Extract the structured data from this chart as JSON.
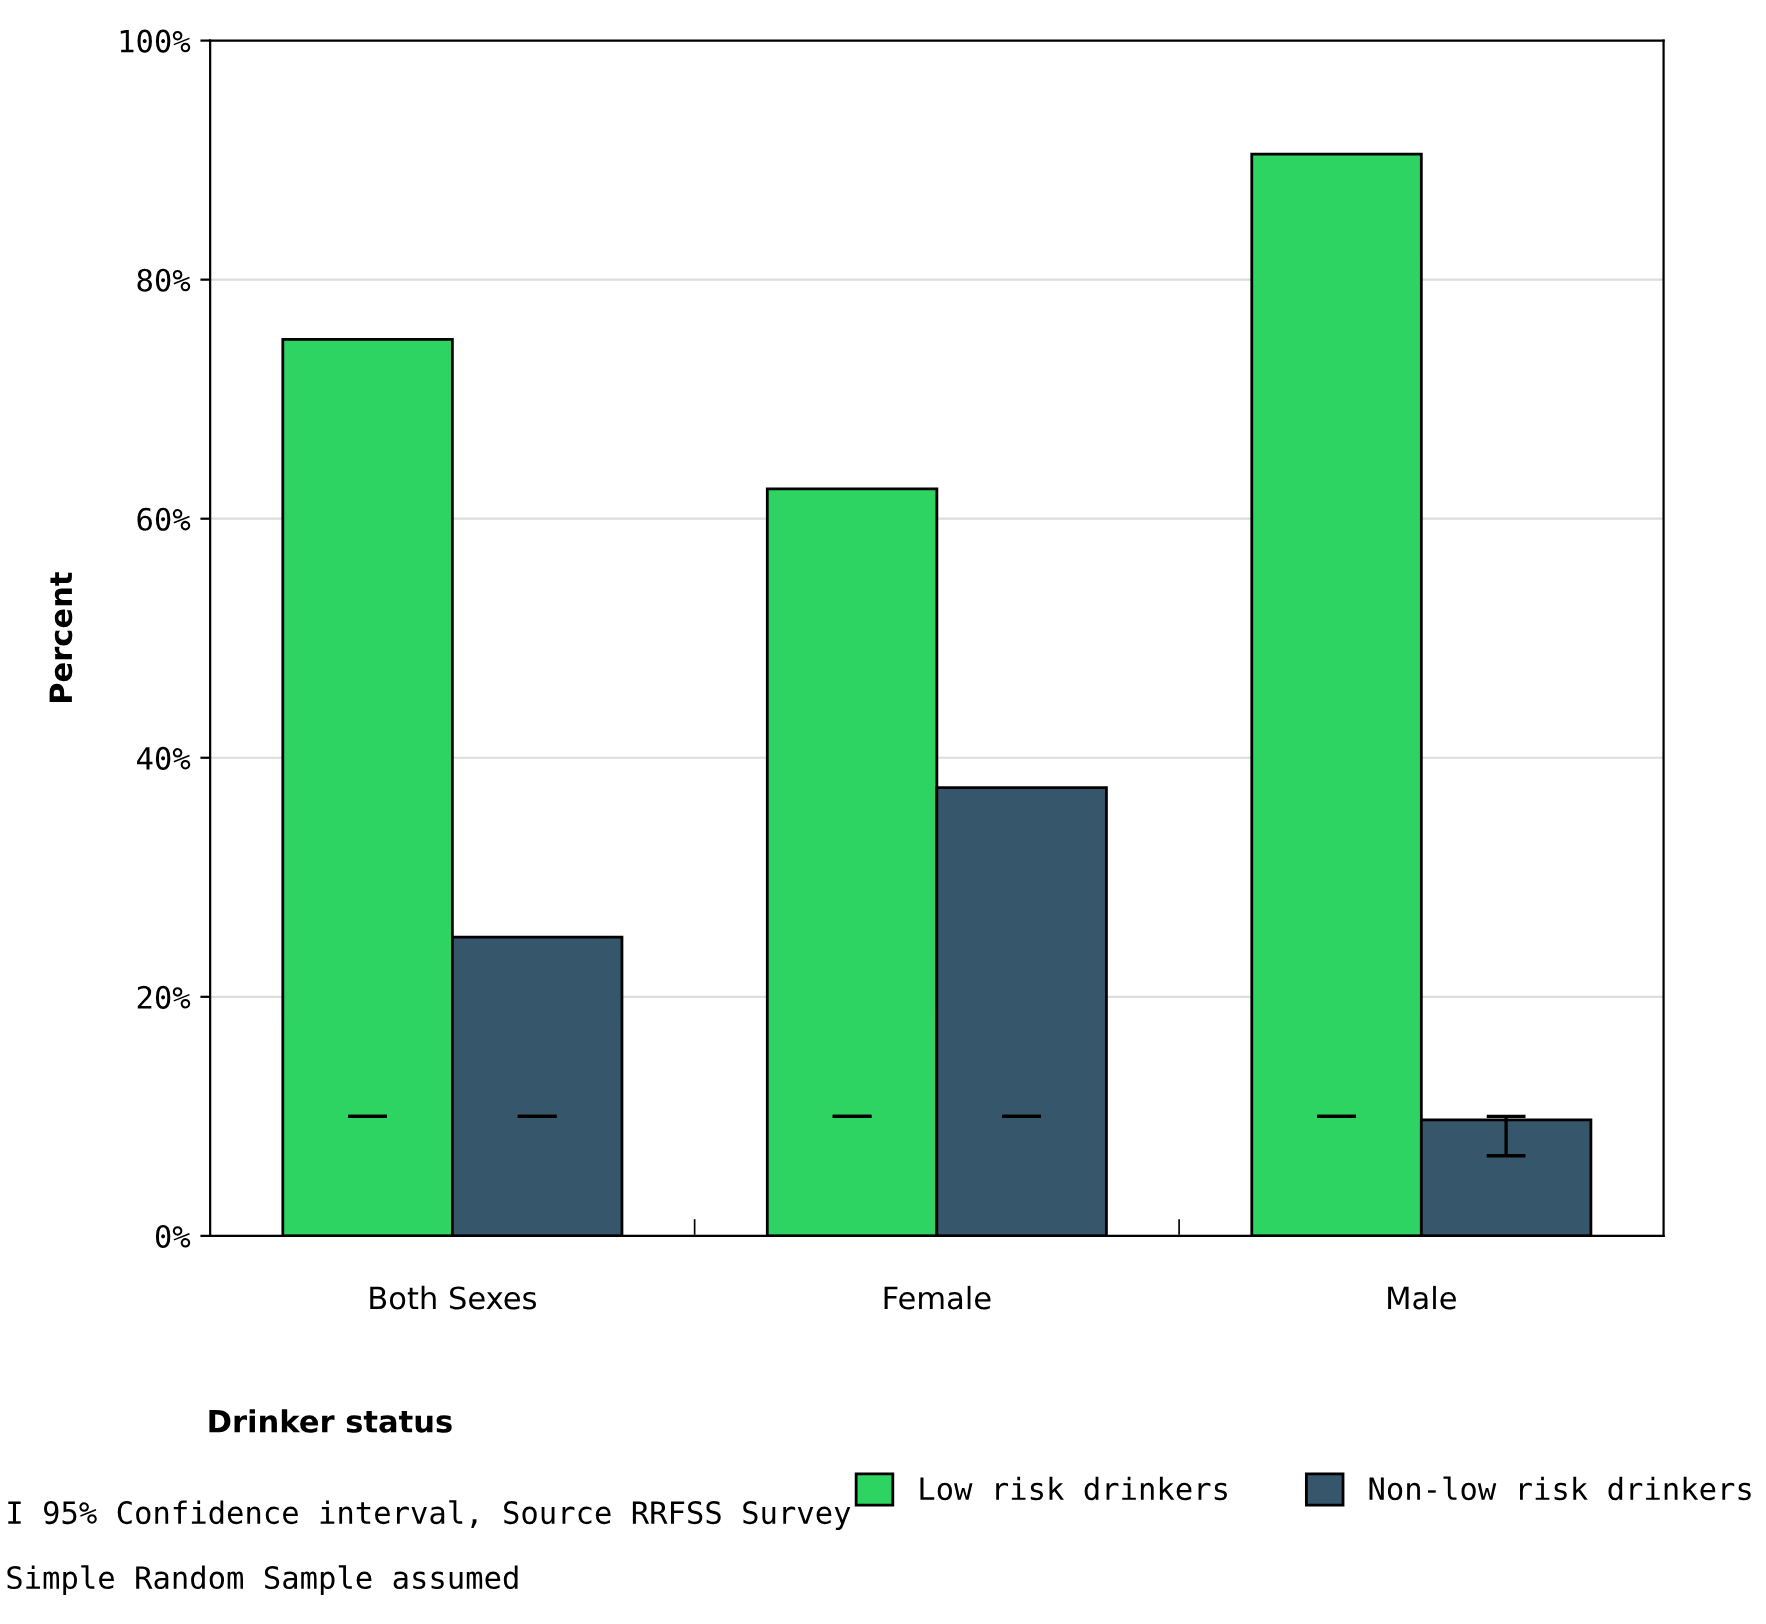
{
  "chart_data": {
    "type": "bar",
    "ylabel": "Percent",
    "xlabel": "Drinker status",
    "categories": [
      "Both Sexes",
      "Female",
      "Male"
    ],
    "series": [
      {
        "name": "Low risk drinkers",
        "color": "#2ed461",
        "values": [
          75,
          62.5,
          90.5
        ],
        "errors": [
          [
            10,
            10
          ],
          [
            10,
            10
          ],
          [
            10,
            10
          ]
        ]
      },
      {
        "name": "Non-low risk drinkers",
        "color": "#36576b",
        "values": [
          25,
          37.5,
          9.7
        ],
        "errors": [
          [
            10,
            10
          ],
          [
            10,
            10
          ],
          [
            6.7,
            10
          ]
        ]
      }
    ],
    "ylim": [
      0,
      100
    ],
    "yticks": [
      {
        "value": 0,
        "label": "0%"
      },
      {
        "value": 20,
        "label": "20%"
      },
      {
        "value": 40,
        "label": "40%"
      },
      {
        "value": 60,
        "label": "60%"
      },
      {
        "value": 80,
        "label": "80%"
      },
      {
        "value": 100,
        "label": "100%"
      }
    ],
    "grid": "y",
    "legend": "bottom right",
    "annotations": [
      "I 95% Confidence interval, Source RRFSS Survey",
      "Simple Random Sample assumed"
    ]
  }
}
